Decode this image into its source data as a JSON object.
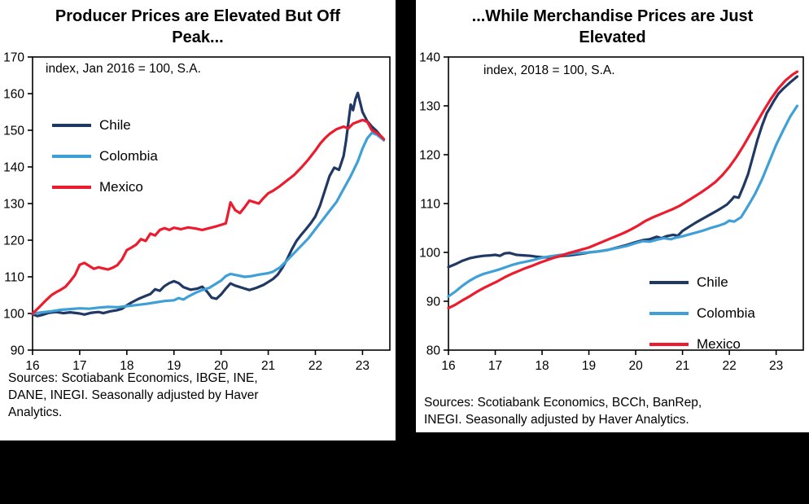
{
  "page_background": "#000000",
  "panel_background": "#ffffff",
  "chart_data": [
    {
      "type": "line",
      "title": "Producer Prices are Elevated But Off\nPeak...",
      "note": "index, Jan 2016 = 100, S.A.",
      "xlabel": "",
      "ylabel": "",
      "xlim": [
        16,
        23.58
      ],
      "ylim": [
        90,
        170
      ],
      "xticks": [
        16,
        17,
        18,
        19,
        20,
        21,
        22,
        23
      ],
      "yticks": [
        90,
        100,
        110,
        120,
        130,
        140,
        150,
        160,
        170
      ],
      "grid": false,
      "legend_position": "upper-left",
      "sources": "Sources: Scotiabank Economics, IBGE, INE,\nDANE, INEGI. Seasonally adjusted by Haver\nAnalytics.",
      "series": [
        {
          "name": "Chile",
          "color": "#1f3864",
          "x": [
            16.0,
            16.1,
            16.2,
            16.35,
            16.5,
            16.65,
            16.8,
            17.0,
            17.1,
            17.25,
            17.4,
            17.5,
            17.65,
            17.8,
            17.9,
            18.0,
            18.1,
            18.25,
            18.4,
            18.5,
            18.6,
            18.7,
            18.8,
            18.9,
            19.0,
            19.1,
            19.2,
            19.35,
            19.5,
            19.6,
            19.7,
            19.8,
            19.9,
            20.0,
            20.1,
            20.2,
            20.3,
            20.45,
            20.6,
            20.75,
            20.9,
            21.0,
            21.1,
            21.2,
            21.3,
            21.4,
            21.5,
            21.6,
            21.7,
            21.8,
            21.9,
            22.0,
            22.1,
            22.2,
            22.3,
            22.4,
            22.5,
            22.6,
            22.65,
            22.7,
            22.75,
            22.8,
            22.85,
            22.9,
            23.0,
            23.1,
            23.2,
            23.3,
            23.4,
            23.45
          ],
          "y": [
            99.8,
            99.3,
            99.6,
            100.2,
            100.4,
            100.1,
            100.3,
            100.0,
            99.7,
            100.2,
            100.4,
            100.1,
            100.6,
            100.9,
            101.3,
            102.2,
            103.0,
            104.0,
            104.8,
            105.3,
            106.6,
            106.2,
            107.5,
            108.3,
            108.8,
            108.3,
            107.2,
            106.5,
            106.8,
            107.3,
            106.0,
            104.3,
            104.0,
            105.2,
            106.8,
            108.2,
            107.6,
            107.0,
            106.4,
            107.0,
            107.8,
            108.6,
            109.4,
            110.6,
            112.5,
            114.8,
            117.5,
            119.8,
            121.5,
            123.0,
            124.6,
            126.5,
            129.5,
            133.5,
            137.5,
            139.8,
            139.2,
            143.0,
            147.0,
            152.0,
            157.0,
            155.5,
            158.5,
            160.2,
            155.0,
            152.5,
            151.0,
            149.8,
            148.2,
            147.3
          ]
        },
        {
          "name": "Colombia",
          "color": "#3fa0d8",
          "x": [
            16.0,
            16.2,
            16.4,
            16.6,
            16.8,
            17.0,
            17.2,
            17.4,
            17.6,
            17.8,
            18.0,
            18.2,
            18.4,
            18.6,
            18.8,
            19.0,
            19.1,
            19.2,
            19.3,
            19.45,
            19.6,
            19.75,
            19.9,
            20.0,
            20.1,
            20.2,
            20.35,
            20.5,
            20.65,
            20.8,
            21.0,
            21.1,
            21.25,
            21.4,
            21.55,
            21.7,
            21.85,
            22.0,
            22.15,
            22.3,
            22.45,
            22.6,
            22.75,
            22.9,
            23.0,
            23.1,
            23.2,
            23.3,
            23.4,
            23.45
          ],
          "y": [
            100.0,
            100.3,
            100.6,
            101.0,
            101.2,
            101.4,
            101.3,
            101.6,
            101.8,
            101.7,
            102.0,
            102.3,
            102.6,
            103.0,
            103.4,
            103.6,
            104.2,
            103.8,
            104.6,
            105.6,
            106.4,
            107.0,
            108.2,
            109.0,
            110.2,
            110.8,
            110.4,
            110.0,
            110.2,
            110.6,
            111.0,
            111.4,
            112.6,
            114.5,
            116.5,
            118.5,
            120.5,
            123.0,
            125.5,
            128.0,
            130.5,
            134.0,
            137.5,
            141.5,
            145.0,
            147.8,
            149.3,
            148.8,
            147.8,
            147.4
          ]
        },
        {
          "name": "Mexico",
          "color": "#ed1b2e",
          "x": [
            16.0,
            16.1,
            16.2,
            16.3,
            16.4,
            16.5,
            16.6,
            16.7,
            16.8,
            16.9,
            17.0,
            17.1,
            17.2,
            17.3,
            17.4,
            17.5,
            17.6,
            17.7,
            17.8,
            17.9,
            18.0,
            18.1,
            18.2,
            18.3,
            18.4,
            18.5,
            18.6,
            18.7,
            18.8,
            18.9,
            19.0,
            19.15,
            19.3,
            19.45,
            19.6,
            19.75,
            19.9,
            20.0,
            20.1,
            20.2,
            20.3,
            20.4,
            20.5,
            20.6,
            20.7,
            20.8,
            20.9,
            21.0,
            21.1,
            21.25,
            21.4,
            21.55,
            21.7,
            21.85,
            22.0,
            22.1,
            22.2,
            22.3,
            22.45,
            22.6,
            22.7,
            22.8,
            22.9,
            23.0,
            23.1,
            23.2,
            23.3,
            23.4,
            23.45
          ],
          "y": [
            100.0,
            101.2,
            102.5,
            103.8,
            105.0,
            105.8,
            106.5,
            107.3,
            108.8,
            110.5,
            113.3,
            113.8,
            113.0,
            112.2,
            112.6,
            112.3,
            112.0,
            112.5,
            113.2,
            114.8,
            117.3,
            118.0,
            118.8,
            120.3,
            119.8,
            121.8,
            121.3,
            122.8,
            123.3,
            122.8,
            123.4,
            123.0,
            123.5,
            123.2,
            122.8,
            123.3,
            123.8,
            124.2,
            124.6,
            130.3,
            128.2,
            127.4,
            129.0,
            130.8,
            130.4,
            130.0,
            131.5,
            132.8,
            133.5,
            134.8,
            136.3,
            137.8,
            139.8,
            142.0,
            144.5,
            146.3,
            147.8,
            149.0,
            150.3,
            151.0,
            150.5,
            151.8,
            152.3,
            152.8,
            152.3,
            150.0,
            149.3,
            148.3,
            147.6
          ]
        }
      ]
    },
    {
      "type": "line",
      "title": "...While Merchandise Prices are Just\nElevated",
      "note": "index, 2018 = 100, S.A.",
      "xlabel": "",
      "ylabel": "",
      "xlim": [
        16,
        23.58
      ],
      "ylim": [
        80,
        140
      ],
      "xticks": [
        16,
        17,
        18,
        19,
        20,
        21,
        22,
        23
      ],
      "yticks": [
        80,
        90,
        100,
        110,
        120,
        130,
        140
      ],
      "grid": false,
      "legend_position": "lower-right",
      "sources": "Sources: Scotiabank Economics, BCCh, BanRep,\nINEGI. Seasonally adjusted by Haver Analytics.",
      "series": [
        {
          "name": "Chile",
          "color": "#1f3864",
          "x": [
            16.0,
            16.15,
            16.3,
            16.45,
            16.6,
            16.75,
            16.9,
            17.0,
            17.1,
            17.2,
            17.3,
            17.45,
            17.6,
            17.75,
            17.9,
            18.0,
            18.15,
            18.3,
            18.45,
            18.6,
            18.75,
            18.9,
            19.0,
            19.2,
            19.4,
            19.6,
            19.8,
            20.0,
            20.15,
            20.3,
            20.45,
            20.55,
            20.65,
            20.8,
            20.9,
            21.0,
            21.15,
            21.3,
            21.45,
            21.6,
            21.75,
            21.85,
            21.95,
            22.05,
            22.1,
            22.2,
            22.3,
            22.4,
            22.5,
            22.6,
            22.7,
            22.8,
            22.85,
            22.95,
            23.05,
            23.15,
            23.3,
            23.45
          ],
          "y": [
            97.0,
            97.6,
            98.3,
            98.8,
            99.1,
            99.3,
            99.4,
            99.5,
            99.3,
            99.8,
            99.9,
            99.5,
            99.4,
            99.3,
            99.1,
            99.0,
            99.0,
            99.1,
            99.3,
            99.4,
            99.6,
            99.8,
            100.0,
            100.2,
            100.5,
            101.0,
            101.5,
            102.1,
            102.5,
            102.7,
            103.2,
            102.9,
            103.3,
            103.6,
            103.4,
            104.4,
            105.3,
            106.2,
            107.0,
            107.8,
            108.6,
            109.2,
            109.8,
            110.8,
            111.4,
            111.2,
            113.5,
            116.0,
            119.5,
            123.0,
            126.0,
            128.5,
            129.3,
            131.0,
            132.5,
            133.5,
            134.8,
            136.0
          ]
        },
        {
          "name": "Colombia",
          "color": "#3fa0d8",
          "x": [
            16.0,
            16.15,
            16.3,
            16.45,
            16.6,
            16.75,
            16.9,
            17.05,
            17.2,
            17.35,
            17.5,
            17.65,
            17.8,
            17.95,
            18.1,
            18.25,
            18.4,
            18.55,
            18.7,
            18.85,
            19.0,
            19.2,
            19.4,
            19.6,
            19.8,
            20.0,
            20.15,
            20.3,
            20.45,
            20.6,
            20.75,
            20.85,
            21.0,
            21.15,
            21.3,
            21.45,
            21.6,
            21.75,
            21.9,
            22.0,
            22.1,
            22.25,
            22.4,
            22.55,
            22.7,
            22.85,
            23.0,
            23.15,
            23.3,
            23.45
          ],
          "y": [
            91.0,
            92.0,
            93.2,
            94.2,
            95.0,
            95.6,
            96.0,
            96.4,
            96.9,
            97.4,
            97.8,
            98.1,
            98.4,
            98.8,
            99.1,
            99.3,
            99.5,
            99.6,
            99.8,
            99.9,
            100.0,
            100.2,
            100.5,
            100.9,
            101.3,
            101.9,
            102.3,
            102.2,
            102.6,
            102.9,
            102.7,
            103.0,
            103.3,
            103.7,
            104.1,
            104.5,
            105.0,
            105.4,
            105.9,
            106.5,
            106.3,
            107.2,
            109.5,
            112.0,
            115.0,
            118.5,
            122.0,
            125.0,
            127.8,
            130.0
          ]
        },
        {
          "name": "Mexico",
          "color": "#ed1b2e",
          "x": [
            16.0,
            16.15,
            16.3,
            16.45,
            16.6,
            16.75,
            16.9,
            17.05,
            17.2,
            17.35,
            17.5,
            17.65,
            17.8,
            17.95,
            18.1,
            18.25,
            18.4,
            18.55,
            18.7,
            18.85,
            19.0,
            19.15,
            19.3,
            19.45,
            19.6,
            19.75,
            19.9,
            20.05,
            20.2,
            20.35,
            20.5,
            20.65,
            20.8,
            20.95,
            21.1,
            21.25,
            21.4,
            21.55,
            21.7,
            21.85,
            22.0,
            22.15,
            22.3,
            22.45,
            22.6,
            22.75,
            22.9,
            23.05,
            23.2,
            23.35,
            23.45
          ],
          "y": [
            88.6,
            89.3,
            90.2,
            91.0,
            91.9,
            92.7,
            93.4,
            94.1,
            94.9,
            95.6,
            96.2,
            96.8,
            97.3,
            97.9,
            98.4,
            98.9,
            99.3,
            99.8,
            100.2,
            100.6,
            101.0,
            101.6,
            102.2,
            102.8,
            103.4,
            104.0,
            104.7,
            105.5,
            106.4,
            107.1,
            107.7,
            108.3,
            108.9,
            109.6,
            110.5,
            111.4,
            112.3,
            113.3,
            114.4,
            115.8,
            117.5,
            119.5,
            121.8,
            124.3,
            126.8,
            129.3,
            131.6,
            133.6,
            135.2,
            136.4,
            137.0
          ]
        }
      ]
    }
  ]
}
